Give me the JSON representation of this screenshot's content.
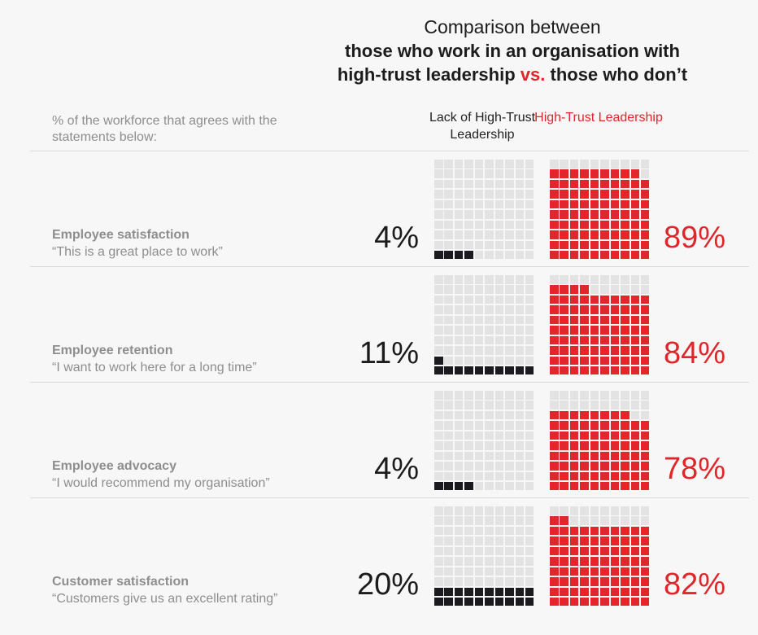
{
  "header": {
    "title_line1": "Comparison between",
    "title_line2": "those who work in an organisation with",
    "title_line3_a": "high-trust leadership ",
    "title_line3_vs": "vs.",
    "title_line3_b": " those who don’t"
  },
  "subheading": "% of the workforce that agrees with the statements below:",
  "columns": {
    "lack": "Lack of High-Trust Leadership",
    "high": "High-Trust Leadership"
  },
  "colors": {
    "lack": "#1b1b1f",
    "high": "#e3252c",
    "empty": "#e3e3e3",
    "accent_text": "#e0252b"
  },
  "chart_data": {
    "type": "waffle",
    "title": "Comparison between those who work in an organisation with high-trust leadership vs. those who don’t",
    "ylabel": "% of the workforce that agrees with the statements below:",
    "series": [
      {
        "name": "Lack of High-Trust Leadership",
        "values": [
          4,
          11,
          4,
          20
        ]
      },
      {
        "name": "High-Trust Leadership",
        "values": [
          89,
          84,
          78,
          82
        ]
      }
    ],
    "rows": [
      {
        "title": "Employee satisfaction",
        "quote": "“This is a great place to work”",
        "lack": 4,
        "high": 89,
        "lack_label": "4%",
        "high_label": "89%"
      },
      {
        "title": "Employee retention",
        "quote": "“I want to work here for a long time”",
        "lack": 11,
        "high": 84,
        "lack_label": "11%",
        "high_label": "84%"
      },
      {
        "title": "Employee advocacy",
        "quote": "“I would recommend my organisation”",
        "lack": 4,
        "high": 78,
        "lack_label": "4%",
        "high_label": "78%"
      },
      {
        "title": "Customer satisfaction",
        "quote": "“Customers give us an excellent rating”",
        "lack": 20,
        "high": 82,
        "lack_label": "20%",
        "high_label": "82%"
      }
    ]
  }
}
